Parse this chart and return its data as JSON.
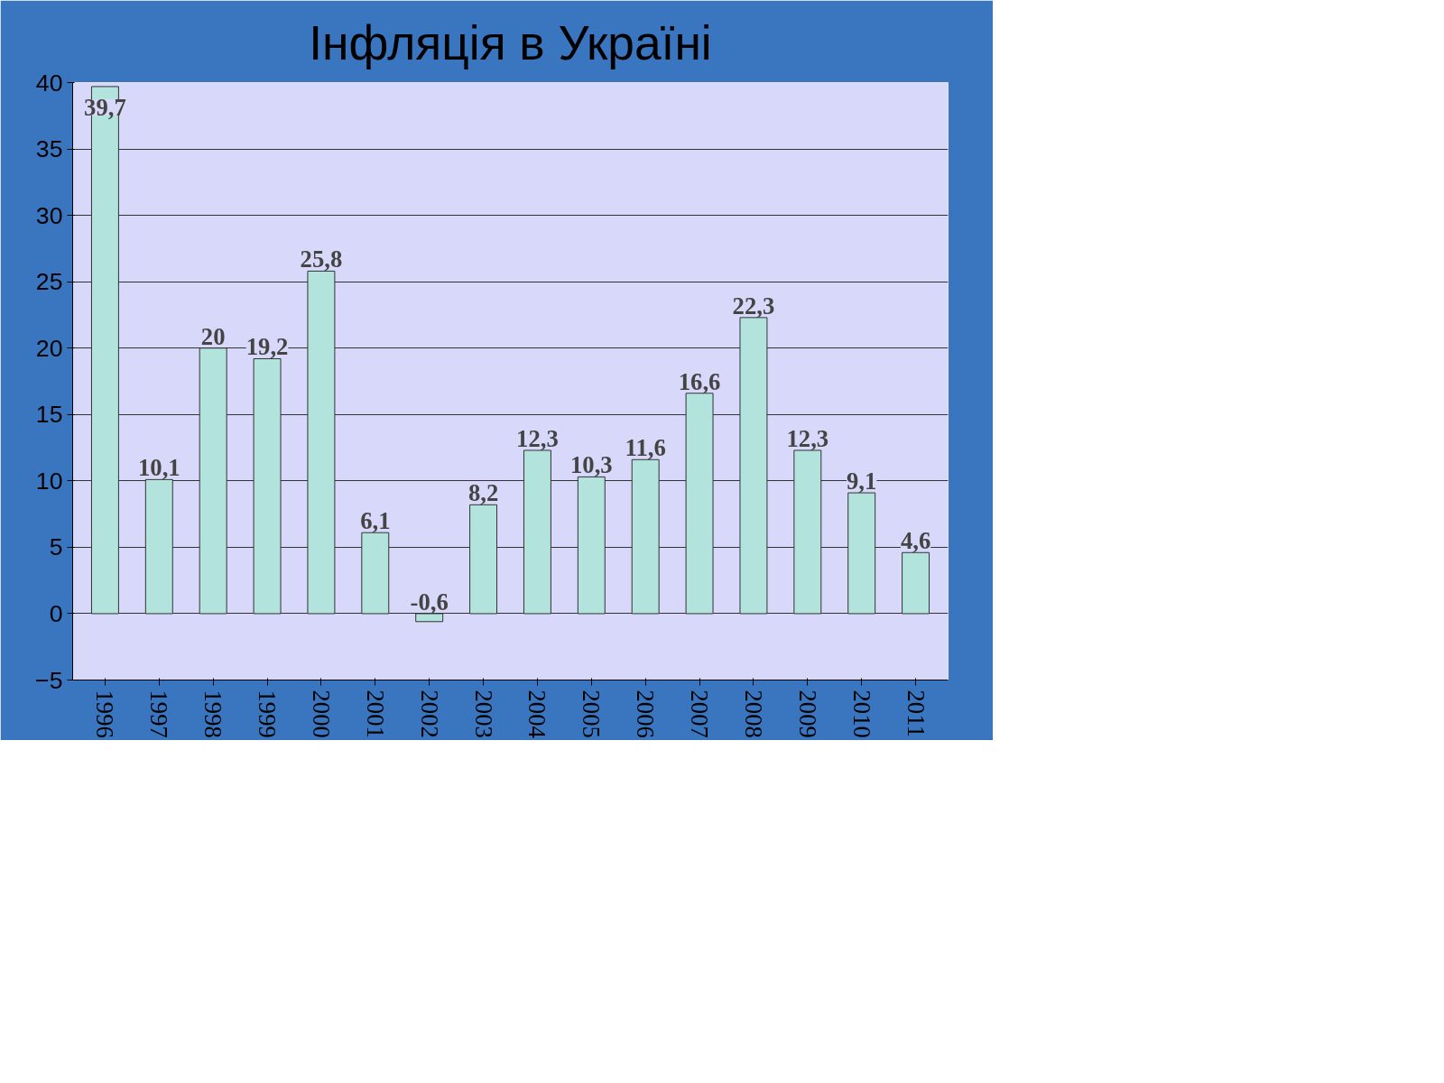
{
  "chart_data": {
    "type": "bar",
    "title": "Інфляція в Україні",
    "categories": [
      "1996",
      "1997",
      "1998",
      "1999",
      "2000",
      "2001",
      "2002",
      "2003",
      "2004",
      "2005",
      "2006",
      "2007",
      "2008",
      "2009",
      "2010",
      "2011"
    ],
    "values": [
      39.7,
      10.1,
      20,
      19.2,
      25.8,
      6.1,
      -0.6,
      8.2,
      12.3,
      10.3,
      11.6,
      16.6,
      22.3,
      12.3,
      9.1,
      4.6
    ],
    "value_labels": [
      "39,7",
      "10,1",
      "20",
      "19,2",
      "25,8",
      "6,1",
      "-0,6",
      "8,2",
      "12,3",
      "10,3",
      "11,6",
      "16,6",
      "22,3",
      "12,3",
      "9,1",
      "4,6"
    ],
    "color": "#b3e3dd",
    "ylim": [
      -5,
      40
    ],
    "yticks": [
      -5,
      0,
      5,
      10,
      15,
      20,
      25,
      30,
      35,
      40
    ],
    "grid": "y"
  }
}
